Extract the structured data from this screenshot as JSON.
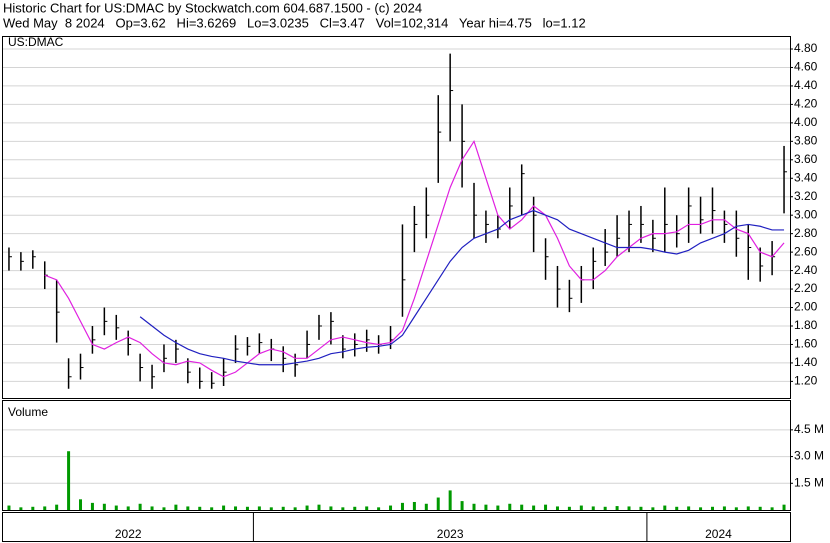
{
  "header": {
    "line1": "Historic Chart for US:DMAC by Stockwatch.com 604.687.1500 - (c) 2024",
    "line2": "Wed May  8 2024   Op=3.62   Hi=3.6269   Lo=3.0235   Cl=3.47   Vol=102,314   Year hi=4.75   lo=1.12"
  },
  "chart_data": [
    {
      "type": "hlc",
      "title": "US:DMAC",
      "categories": [
        "2022",
        "2022",
        "2022",
        "2022",
        "2022",
        "2022",
        "2022",
        "2022",
        "2022",
        "2022",
        "2022",
        "2022",
        "2022",
        "2022",
        "2022",
        "2022",
        "2022",
        "2022",
        "2022",
        "2022",
        "2022",
        "2023",
        "2023",
        "2023",
        "2023",
        "2023",
        "2023",
        "2023",
        "2023",
        "2023",
        "2023",
        "2023",
        "2023",
        "2023",
        "2023",
        "2023",
        "2023",
        "2023",
        "2023",
        "2023",
        "2023",
        "2023",
        "2023",
        "2023",
        "2023",
        "2023",
        "2023",
        "2023",
        "2023",
        "2023",
        "2023",
        "2023",
        "2023",
        "2023",
        "2024",
        "2024",
        "2024",
        "2024",
        "2024",
        "2024",
        "2024",
        "2024",
        "2024",
        "2024",
        "2024",
        "2024"
      ],
      "high": [
        2.65,
        2.6,
        2.62,
        2.5,
        2.3,
        1.45,
        1.5,
        1.8,
        2.0,
        1.92,
        1.75,
        1.5,
        1.38,
        1.6,
        1.65,
        1.45,
        1.35,
        1.3,
        1.45,
        1.7,
        1.68,
        1.72,
        1.66,
        1.58,
        1.5,
        1.75,
        1.92,
        1.95,
        1.7,
        1.72,
        1.76,
        1.7,
        1.8,
        2.9,
        3.1,
        3.3,
        4.3,
        4.75,
        4.2,
        3.35,
        3.05,
        3.0,
        3.3,
        3.55,
        3.2,
        2.75,
        2.45,
        2.3,
        2.45,
        2.65,
        2.85,
        3.0,
        3.05,
        3.1,
        2.95,
        3.3,
        3.0,
        3.3,
        3.2,
        3.3,
        3.05,
        3.05,
        2.9,
        2.65,
        2.72,
        3.75
      ],
      "low": [
        2.4,
        2.4,
        2.42,
        2.2,
        1.62,
        1.12,
        1.22,
        1.5,
        1.7,
        1.65,
        1.48,
        1.2,
        1.12,
        1.3,
        1.4,
        1.18,
        1.12,
        1.12,
        1.15,
        1.4,
        1.48,
        1.5,
        1.42,
        1.3,
        1.25,
        1.45,
        1.65,
        1.6,
        1.45,
        1.47,
        1.52,
        1.5,
        1.55,
        1.9,
        2.6,
        2.75,
        3.35,
        3.8,
        3.3,
        2.75,
        2.7,
        2.75,
        2.85,
        3.0,
        2.6,
        2.3,
        2.0,
        1.95,
        2.05,
        2.2,
        2.45,
        2.55,
        2.6,
        2.7,
        2.6,
        2.6,
        2.65,
        2.7,
        2.8,
        2.8,
        2.7,
        2.55,
        2.3,
        2.28,
        2.35,
        3.02
      ],
      "close": [
        2.55,
        2.5,
        2.55,
        2.35,
        1.95,
        1.25,
        1.35,
        1.65,
        1.85,
        1.78,
        1.6,
        1.35,
        1.25,
        1.45,
        1.55,
        1.3,
        1.2,
        1.18,
        1.3,
        1.55,
        1.58,
        1.62,
        1.55,
        1.45,
        1.38,
        1.6,
        1.8,
        1.85,
        1.55,
        1.6,
        1.65,
        1.6,
        1.65,
        2.3,
        2.9,
        3.0,
        3.9,
        4.35,
        3.8,
        3.0,
        2.9,
        2.85,
        3.1,
        3.45,
        3.0,
        2.55,
        2.2,
        2.1,
        2.3,
        2.5,
        2.6,
        2.75,
        2.9,
        2.9,
        2.75,
        2.9,
        2.8,
        3.1,
        2.95,
        3.05,
        2.9,
        2.75,
        2.65,
        2.45,
        2.55,
        3.47
      ],
      "color": "#000000",
      "lines": [
        {
          "color": "#e020e0",
          "values": [
            null,
            null,
            null,
            2.35,
            2.3,
            2.1,
            1.85,
            1.6,
            1.55,
            1.62,
            1.68,
            1.62,
            1.5,
            1.4,
            1.38,
            1.42,
            1.4,
            1.32,
            1.25,
            1.3,
            1.4,
            1.5,
            1.55,
            1.52,
            1.45,
            1.45,
            1.55,
            1.65,
            1.68,
            1.65,
            1.62,
            1.6,
            1.62,
            1.75,
            2.1,
            2.5,
            2.9,
            3.3,
            3.6,
            3.8,
            3.4,
            3.0,
            2.85,
            2.95,
            3.1,
            3.0,
            2.75,
            2.45,
            2.3,
            2.3,
            2.4,
            2.55,
            2.65,
            2.75,
            2.8,
            2.8,
            2.82,
            2.9,
            2.9,
            2.95,
            2.95,
            2.85,
            2.8,
            2.6,
            2.55,
            2.7
          ]
        },
        {
          "color": "#2020c0",
          "values": [
            null,
            null,
            null,
            null,
            null,
            null,
            null,
            null,
            null,
            null,
            null,
            1.9,
            1.8,
            1.7,
            1.62,
            1.55,
            1.5,
            1.47,
            1.45,
            1.42,
            1.4,
            1.38,
            1.38,
            1.38,
            1.4,
            1.42,
            1.45,
            1.5,
            1.52,
            1.55,
            1.57,
            1.58,
            1.6,
            1.7,
            1.9,
            2.1,
            2.3,
            2.5,
            2.65,
            2.75,
            2.8,
            2.85,
            2.95,
            3.0,
            3.05,
            3.0,
            2.95,
            2.85,
            2.8,
            2.75,
            2.7,
            2.65,
            2.65,
            2.65,
            2.63,
            2.6,
            2.58,
            2.62,
            2.7,
            2.75,
            2.8,
            2.88,
            2.9,
            2.88,
            2.84,
            2.84
          ]
        }
      ],
      "ylim": [
        1.02,
        4.93
      ],
      "yticks": [
        {
          "value": 1.2,
          "label": "1.20"
        },
        {
          "value": 1.4,
          "label": "1.40"
        },
        {
          "value": 1.6,
          "label": "1.60"
        },
        {
          "value": 1.8,
          "label": "1.80"
        },
        {
          "value": 2.0,
          "label": "2.00"
        },
        {
          "value": 2.2,
          "label": "2.20"
        },
        {
          "value": 2.4,
          "label": "2.40"
        },
        {
          "value": 2.6,
          "label": "2.60"
        },
        {
          "value": 2.8,
          "label": "2.80"
        },
        {
          "value": 3.0,
          "label": "3.00"
        },
        {
          "value": 3.2,
          "label": "3.20"
        },
        {
          "value": 3.4,
          "label": "3.40"
        },
        {
          "value": 3.6,
          "label": "3.60"
        },
        {
          "value": 3.8,
          "label": "3.80"
        },
        {
          "value": 4.0,
          "label": "4.00"
        },
        {
          "value": 4.2,
          "label": "4.20"
        },
        {
          "value": 4.4,
          "label": "4.40"
        },
        {
          "value": 4.6,
          "label": "4.60"
        },
        {
          "value": 4.8,
          "label": "4.80"
        }
      ],
      "grid": true
    },
    {
      "type": "bar",
      "title": "Volume",
      "values": [
        250000,
        150000,
        180000,
        200000,
        300000,
        3300000,
        600000,
        400000,
        350000,
        250000,
        200000,
        350000,
        200000,
        150000,
        300000,
        200000,
        180000,
        150000,
        250000,
        200000,
        180000,
        200000,
        150000,
        180000,
        150000,
        250000,
        300000,
        200000,
        150000,
        180000,
        200000,
        150000,
        250000,
        400000,
        450000,
        350000,
        700000,
        1100000,
        500000,
        350000,
        300000,
        250000,
        350000,
        300000,
        250000,
        300000,
        200000,
        180000,
        250000,
        200000,
        180000,
        220000,
        200000,
        180000,
        150000,
        250000,
        180000,
        200000,
        150000,
        180000,
        200000,
        150000,
        200000,
        180000,
        150000,
        300000
      ],
      "color": "#009900",
      "ylim": [
        0,
        6120000
      ],
      "yticks": [
        {
          "value": 1500000,
          "label": "1.5 M"
        },
        {
          "value": 3000000,
          "label": "3.0 M"
        },
        {
          "value": 4500000,
          "label": "4.5 M"
        }
      ],
      "grid": true
    }
  ]
}
